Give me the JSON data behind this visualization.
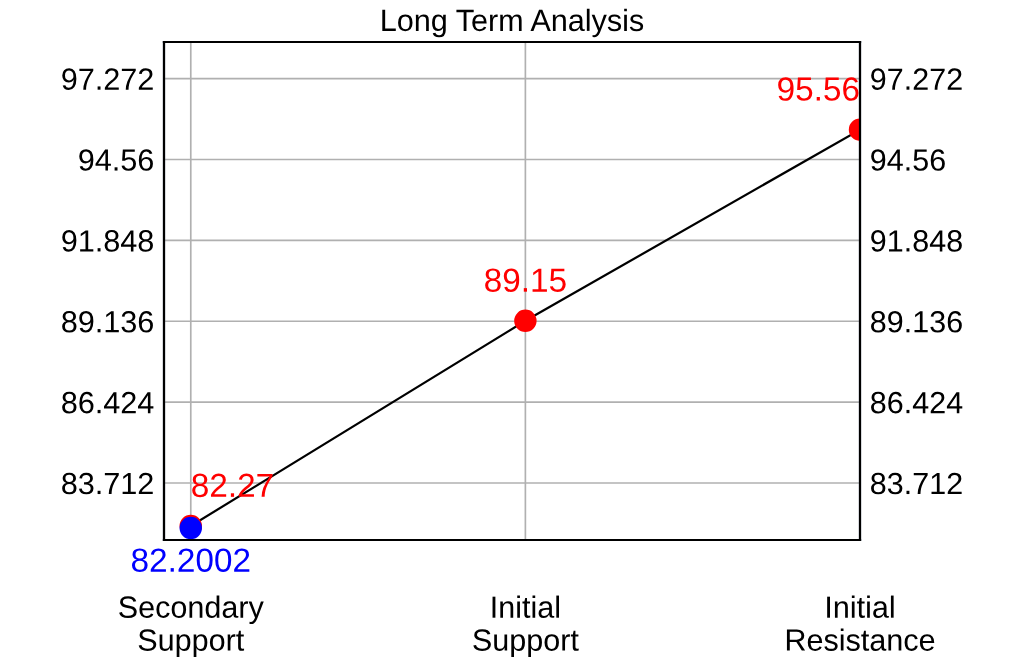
{
  "chart_data": {
    "type": "line",
    "title": "Long Term Analysis",
    "categories": [
      "Secondary\nSupport",
      "Initial\nSupport",
      "Initial\nResistance"
    ],
    "series": [
      {
        "color": "#ff0000",
        "values": [
          82.27,
          89.15,
          95.56
        ],
        "marker": "circle",
        "data_labels": true
      },
      {
        "type": "scatter",
        "color": "#0000ff",
        "values": [
          82.2002,
          null,
          null
        ],
        "marker": "circle",
        "data_labels": true
      }
    ],
    "ylim": [
      81.8,
      98.5
    ],
    "yticks": [
      83.712,
      86.424,
      89.136,
      91.848,
      94.56,
      97.272
    ],
    "y2lim": [
      81.8,
      98.5
    ],
    "y2ticks": [
      83.712,
      86.424,
      89.136,
      91.848,
      94.56,
      97.272
    ],
    "grid": true
  }
}
